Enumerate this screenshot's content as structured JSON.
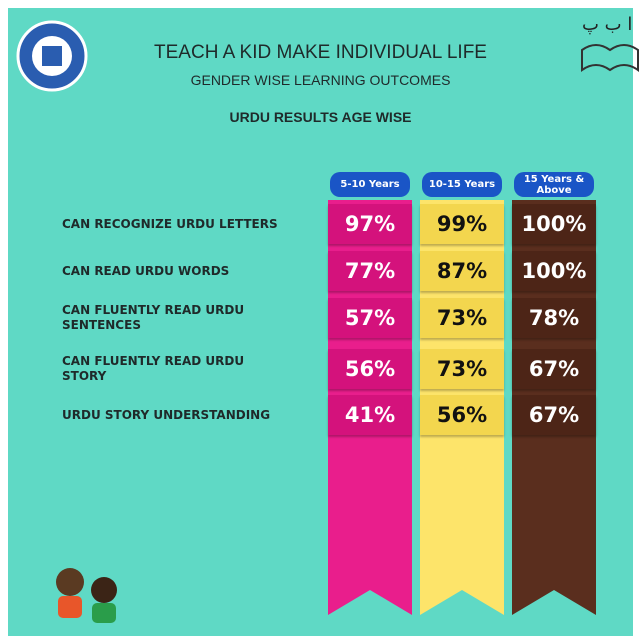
{
  "header": {
    "title": "TEACH A KID MAKE INDIVIDUAL LIFE",
    "subtitle": "GENDER WISE LEARNING OUTCOMES",
    "section": "URDU RESULTS AGE WISE",
    "logo_text": "ا ب پ"
  },
  "table": {
    "columns": [
      "5-10 Years",
      "10-15 Years",
      "15 Years & Above"
    ],
    "rows": [
      [
        "CAN RECOGNIZE URDU LETTERS",
        "97%",
        "99%",
        "100%"
      ],
      [
        "CAN READ URDU WORDS",
        "77%",
        "87%",
        "100%"
      ],
      [
        "CAN FLUENTLY READ URDU SENTENCES",
        "57%",
        "73%",
        "78%"
      ],
      [
        "CAN FLUENTLY READ URDU STORY",
        "56%",
        "73%",
        "67%"
      ],
      [
        "URDU STORY UNDERSTANDING",
        "41%",
        "56%",
        "67%"
      ]
    ]
  }
}
